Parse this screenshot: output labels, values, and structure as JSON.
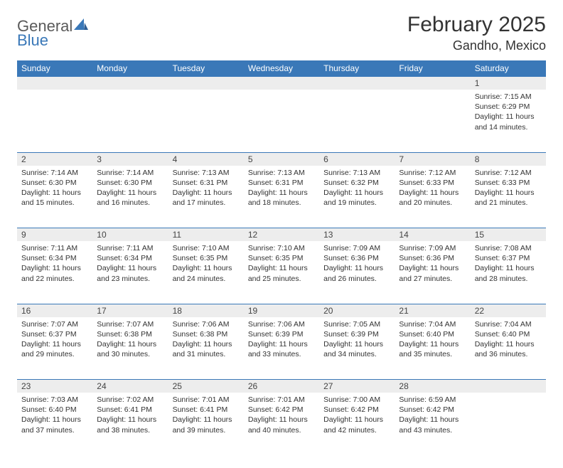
{
  "logo": {
    "part1": "General",
    "part2": "Blue"
  },
  "title": "February 2025",
  "location": "Gandho, Mexico",
  "colors": {
    "header_bg": "#3a78b8",
    "header_text": "#ffffff",
    "daynum_bg": "#ededed",
    "cell_border": "#3a78b8",
    "body_text": "#333333",
    "logo_gray": "#5a5a5a",
    "logo_blue": "#3a78b8"
  },
  "weekdays": [
    "Sunday",
    "Monday",
    "Tuesday",
    "Wednesday",
    "Thursday",
    "Friday",
    "Saturday"
  ],
  "weeks": [
    [
      null,
      null,
      null,
      null,
      null,
      null,
      {
        "n": "1",
        "sr": "Sunrise: 7:15 AM",
        "ss": "Sunset: 6:29 PM",
        "dl": "Daylight: 11 hours and 14 minutes."
      }
    ],
    [
      {
        "n": "2",
        "sr": "Sunrise: 7:14 AM",
        "ss": "Sunset: 6:30 PM",
        "dl": "Daylight: 11 hours and 15 minutes."
      },
      {
        "n": "3",
        "sr": "Sunrise: 7:14 AM",
        "ss": "Sunset: 6:30 PM",
        "dl": "Daylight: 11 hours and 16 minutes."
      },
      {
        "n": "4",
        "sr": "Sunrise: 7:13 AM",
        "ss": "Sunset: 6:31 PM",
        "dl": "Daylight: 11 hours and 17 minutes."
      },
      {
        "n": "5",
        "sr": "Sunrise: 7:13 AM",
        "ss": "Sunset: 6:31 PM",
        "dl": "Daylight: 11 hours and 18 minutes."
      },
      {
        "n": "6",
        "sr": "Sunrise: 7:13 AM",
        "ss": "Sunset: 6:32 PM",
        "dl": "Daylight: 11 hours and 19 minutes."
      },
      {
        "n": "7",
        "sr": "Sunrise: 7:12 AM",
        "ss": "Sunset: 6:33 PM",
        "dl": "Daylight: 11 hours and 20 minutes."
      },
      {
        "n": "8",
        "sr": "Sunrise: 7:12 AM",
        "ss": "Sunset: 6:33 PM",
        "dl": "Daylight: 11 hours and 21 minutes."
      }
    ],
    [
      {
        "n": "9",
        "sr": "Sunrise: 7:11 AM",
        "ss": "Sunset: 6:34 PM",
        "dl": "Daylight: 11 hours and 22 minutes."
      },
      {
        "n": "10",
        "sr": "Sunrise: 7:11 AM",
        "ss": "Sunset: 6:34 PM",
        "dl": "Daylight: 11 hours and 23 minutes."
      },
      {
        "n": "11",
        "sr": "Sunrise: 7:10 AM",
        "ss": "Sunset: 6:35 PM",
        "dl": "Daylight: 11 hours and 24 minutes."
      },
      {
        "n": "12",
        "sr": "Sunrise: 7:10 AM",
        "ss": "Sunset: 6:35 PM",
        "dl": "Daylight: 11 hours and 25 minutes."
      },
      {
        "n": "13",
        "sr": "Sunrise: 7:09 AM",
        "ss": "Sunset: 6:36 PM",
        "dl": "Daylight: 11 hours and 26 minutes."
      },
      {
        "n": "14",
        "sr": "Sunrise: 7:09 AM",
        "ss": "Sunset: 6:36 PM",
        "dl": "Daylight: 11 hours and 27 minutes."
      },
      {
        "n": "15",
        "sr": "Sunrise: 7:08 AM",
        "ss": "Sunset: 6:37 PM",
        "dl": "Daylight: 11 hours and 28 minutes."
      }
    ],
    [
      {
        "n": "16",
        "sr": "Sunrise: 7:07 AM",
        "ss": "Sunset: 6:37 PM",
        "dl": "Daylight: 11 hours and 29 minutes."
      },
      {
        "n": "17",
        "sr": "Sunrise: 7:07 AM",
        "ss": "Sunset: 6:38 PM",
        "dl": "Daylight: 11 hours and 30 minutes."
      },
      {
        "n": "18",
        "sr": "Sunrise: 7:06 AM",
        "ss": "Sunset: 6:38 PM",
        "dl": "Daylight: 11 hours and 31 minutes."
      },
      {
        "n": "19",
        "sr": "Sunrise: 7:06 AM",
        "ss": "Sunset: 6:39 PM",
        "dl": "Daylight: 11 hours and 33 minutes."
      },
      {
        "n": "20",
        "sr": "Sunrise: 7:05 AM",
        "ss": "Sunset: 6:39 PM",
        "dl": "Daylight: 11 hours and 34 minutes."
      },
      {
        "n": "21",
        "sr": "Sunrise: 7:04 AM",
        "ss": "Sunset: 6:40 PM",
        "dl": "Daylight: 11 hours and 35 minutes."
      },
      {
        "n": "22",
        "sr": "Sunrise: 7:04 AM",
        "ss": "Sunset: 6:40 PM",
        "dl": "Daylight: 11 hours and 36 minutes."
      }
    ],
    [
      {
        "n": "23",
        "sr": "Sunrise: 7:03 AM",
        "ss": "Sunset: 6:40 PM",
        "dl": "Daylight: 11 hours and 37 minutes."
      },
      {
        "n": "24",
        "sr": "Sunrise: 7:02 AM",
        "ss": "Sunset: 6:41 PM",
        "dl": "Daylight: 11 hours and 38 minutes."
      },
      {
        "n": "25",
        "sr": "Sunrise: 7:01 AM",
        "ss": "Sunset: 6:41 PM",
        "dl": "Daylight: 11 hours and 39 minutes."
      },
      {
        "n": "26",
        "sr": "Sunrise: 7:01 AM",
        "ss": "Sunset: 6:42 PM",
        "dl": "Daylight: 11 hours and 40 minutes."
      },
      {
        "n": "27",
        "sr": "Sunrise: 7:00 AM",
        "ss": "Sunset: 6:42 PM",
        "dl": "Daylight: 11 hours and 42 minutes."
      },
      {
        "n": "28",
        "sr": "Sunrise: 6:59 AM",
        "ss": "Sunset: 6:42 PM",
        "dl": "Daylight: 11 hours and 43 minutes."
      },
      null
    ]
  ]
}
